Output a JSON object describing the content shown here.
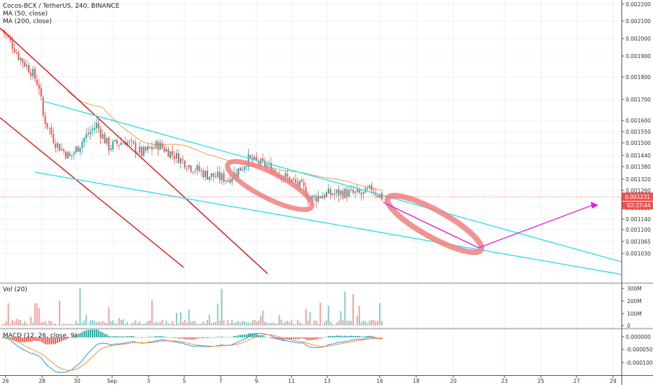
{
  "legend": {
    "symbol_line": "Cocos-BCX / TetherUS, 240, BINANCE",
    "ma50": "MA (50, close)",
    "ma200": "MA (200, close)",
    "volume": "Vol (20)",
    "macd": "MACD (12, 26, close, 9)"
  },
  "price_axis": {
    "ticks": [
      "0.002200",
      "0.002100",
      "0.002000",
      "0.001900",
      "0.001800",
      "0.001700",
      "0.001600",
      "0.001550",
      "0.001500",
      "0.001440",
      "0.001380",
      "0.001320",
      "0.001260",
      "0.001180",
      "0.001140",
      "0.001100",
      "0.001065",
      "0.001030"
    ],
    "current_price": "0.001231",
    "countdown": "02:37:44"
  },
  "volume_axis": {
    "ticks": [
      "300M",
      "200M",
      "100M",
      "0"
    ]
  },
  "macd_axis": {
    "ticks": [
      "0.000000",
      "-0.000050",
      "-0.000100"
    ]
  },
  "time_axis": {
    "labels": [
      "26",
      "28",
      "30",
      "Sep",
      "3",
      "5",
      "7",
      "9",
      "11",
      "13",
      "16",
      "18",
      "20",
      "23",
      "25",
      "27",
      "29"
    ]
  },
  "colors": {
    "bull": "#26a69a",
    "bear": "#ef5350",
    "ma50": "#f0a050",
    "ma200": "#d0d0d0",
    "channel": "#e01010",
    "wedge": "#33e0e8",
    "ellipse": "#f08080",
    "arrow": "#e020e0",
    "price_marker": "#ef5350",
    "macd_line": "#2196f3",
    "signal_line": "#ff8c30"
  },
  "chart_data": {
    "type": "candlestick",
    "title": "Cocos-BCX / TetherUS, 240, BINANCE",
    "indicators": [
      "MA (50, close)",
      "MA (200, close)",
      "Vol (20)",
      "MACD (12, 26, close, 9)"
    ],
    "x_labels": [
      "26",
      "28",
      "30",
      "Sep",
      "3",
      "5",
      "7",
      "9",
      "11",
      "13",
      "16"
    ],
    "price_range": [
      0.00101,
      0.00223
    ],
    "current_price": 0.001231,
    "price_path": [
      [
        0,
        0.00205
      ],
      [
        3,
        0.002
      ],
      [
        8,
        0.0019
      ],
      [
        14,
        0.00183
      ],
      [
        18,
        0.00176
      ],
      [
        20,
        0.00162
      ],
      [
        26,
        0.0015
      ],
      [
        33,
        0.00143
      ],
      [
        40,
        0.00152
      ],
      [
        46,
        0.00158
      ],
      [
        52,
        0.00148
      ],
      [
        60,
        0.00151
      ],
      [
        68,
        0.00145
      ],
      [
        76,
        0.00149
      ],
      [
        84,
        0.00144
      ],
      [
        92,
        0.00138
      ],
      [
        100,
        0.00134
      ],
      [
        110,
        0.00132
      ],
      [
        117,
        0.00138
      ],
      [
        120,
        0.00142
      ],
      [
        130,
        0.00138
      ],
      [
        138,
        0.00133
      ],
      [
        146,
        0.00128
      ],
      [
        150,
        0.00122
      ],
      [
        156,
        0.00124
      ],
      [
        166,
        0.00125
      ],
      [
        176,
        0.00124
      ],
      [
        180,
        0.00127
      ],
      [
        185,
        0.00123
      ]
    ],
    "volume_range_M": [
      0,
      300
    ],
    "macd_range": [
      -0.00012,
      1e-05
    ]
  }
}
